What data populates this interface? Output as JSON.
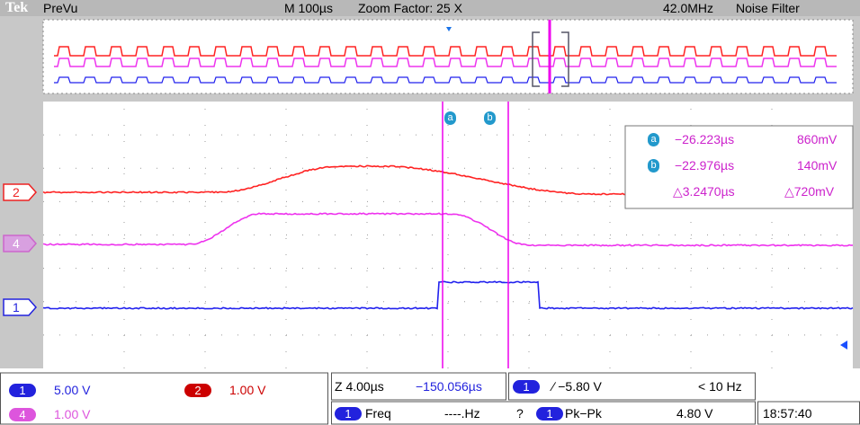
{
  "header": {
    "brand": "Tek",
    "mode": "PreVu",
    "timebase": "M 100µs",
    "zoom": "Zoom Factor: 25 X",
    "bandwidth": "42.0MHz",
    "filter": "Noise Filter"
  },
  "channel_markers": {
    "ch2": "2",
    "ch4": "4",
    "ch1": "1"
  },
  "cursors": {
    "a_label": "a",
    "b_label": "b",
    "readout": {
      "a": {
        "label": "a",
        "time": "−26.223µs",
        "volt": "860mV"
      },
      "b": {
        "label": "b",
        "time": "−22.976µs",
        "volt": "140mV"
      },
      "delta": {
        "time": "△3.2470µs",
        "volt": "△720mV"
      }
    }
  },
  "footer": {
    "ch1": {
      "badge": "1",
      "scale": "5.00 V"
    },
    "ch2": {
      "badge": "2",
      "scale": "1.00 V"
    },
    "ch4": {
      "badge": "4",
      "scale": "1.00 V"
    },
    "zoom": {
      "scale": "Z 4.00µs",
      "position": "−150.056µs"
    },
    "trigger": {
      "badge": "1",
      "level": "∕ −5.80 V",
      "rate": "< 10 Hz"
    },
    "measure1": {
      "badge": "1",
      "name": "Freq",
      "value": "----.Hz",
      "status": "?"
    },
    "measure2": {
      "badge": "1",
      "name": "Pk−Pk",
      "value": "4.80 V"
    },
    "clock": "18:57:40"
  }
}
